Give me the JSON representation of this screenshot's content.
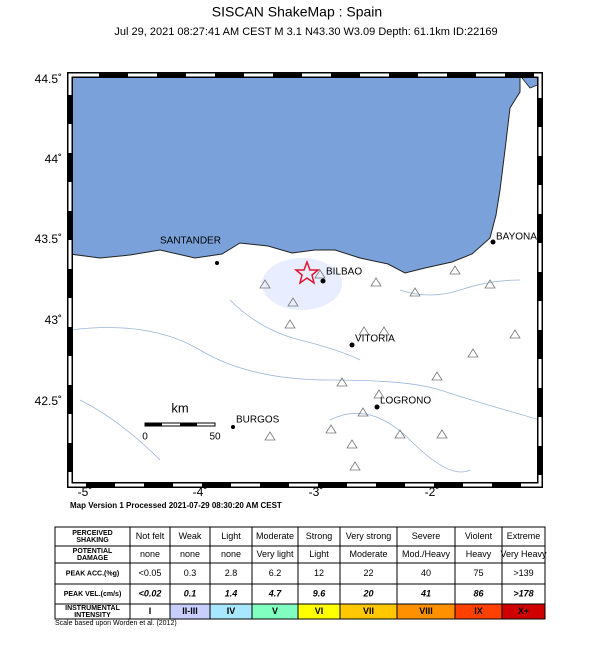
{
  "header": {
    "title": "SISCAN ShakeMap : Spain",
    "subtitle": "Jul 29, 2021 08:27:41 AM CEST   M 3.1   N43.30 W3.09   Depth: 61.1km   ID:22169"
  },
  "map": {
    "lat_labels": [
      "44.5˚",
      "44˚",
      "43.5˚",
      "43˚",
      "42.5˚"
    ],
    "lon_labels": [
      "-5˚",
      "-4˚",
      "-3˚",
      "-2˚"
    ],
    "cities": [
      "SANTANDER",
      "BILBAO",
      "BAYONA",
      "VITORIA",
      "LOGRONO",
      "BURGOS"
    ],
    "scale": {
      "unit": "km",
      "labels": [
        "0",
        "50"
      ]
    },
    "processed": "Map Version 1 Processed 2021-07-29 08:30:20 AM CEST"
  },
  "legend": {
    "rows": [
      {
        "label": [
          "PERCEIVED",
          "SHAKING"
        ],
        "cells": [
          "Not felt",
          "Weak",
          "Light",
          "Moderate",
          "Strong",
          "Very strong",
          "Severe",
          "Violent",
          "Extreme"
        ]
      },
      {
        "label": [
          "POTENTIAL",
          "DAMAGE"
        ],
        "cells": [
          "none",
          "none",
          "none",
          "Very light",
          "Light",
          "Moderate",
          "Mod./Heavy",
          "Heavy",
          "Very Heavy"
        ]
      },
      {
        "label": [
          "PEAK ACC.(%g)"
        ],
        "cells": [
          "<0.05",
          "0.3",
          "2.8",
          "6.2",
          "12",
          "22",
          "40",
          "75",
          ">139"
        ]
      },
      {
        "label": [
          "PEAK VEL.(cm/s)"
        ],
        "cells": [
          "<0.02",
          "0.1",
          "1.4",
          "4.7",
          "9.6",
          "20",
          "41",
          "86",
          ">178"
        ]
      },
      {
        "label": [
          "INSTRUMENTAL",
          "INTENSITY"
        ],
        "cells": [
          "I",
          "II-III",
          "IV",
          "V",
          "VI",
          "VII",
          "VIII",
          "IX",
          "X+"
        ]
      }
    ],
    "footnote": "Scale based upon Worden et al. (2012)"
  }
}
